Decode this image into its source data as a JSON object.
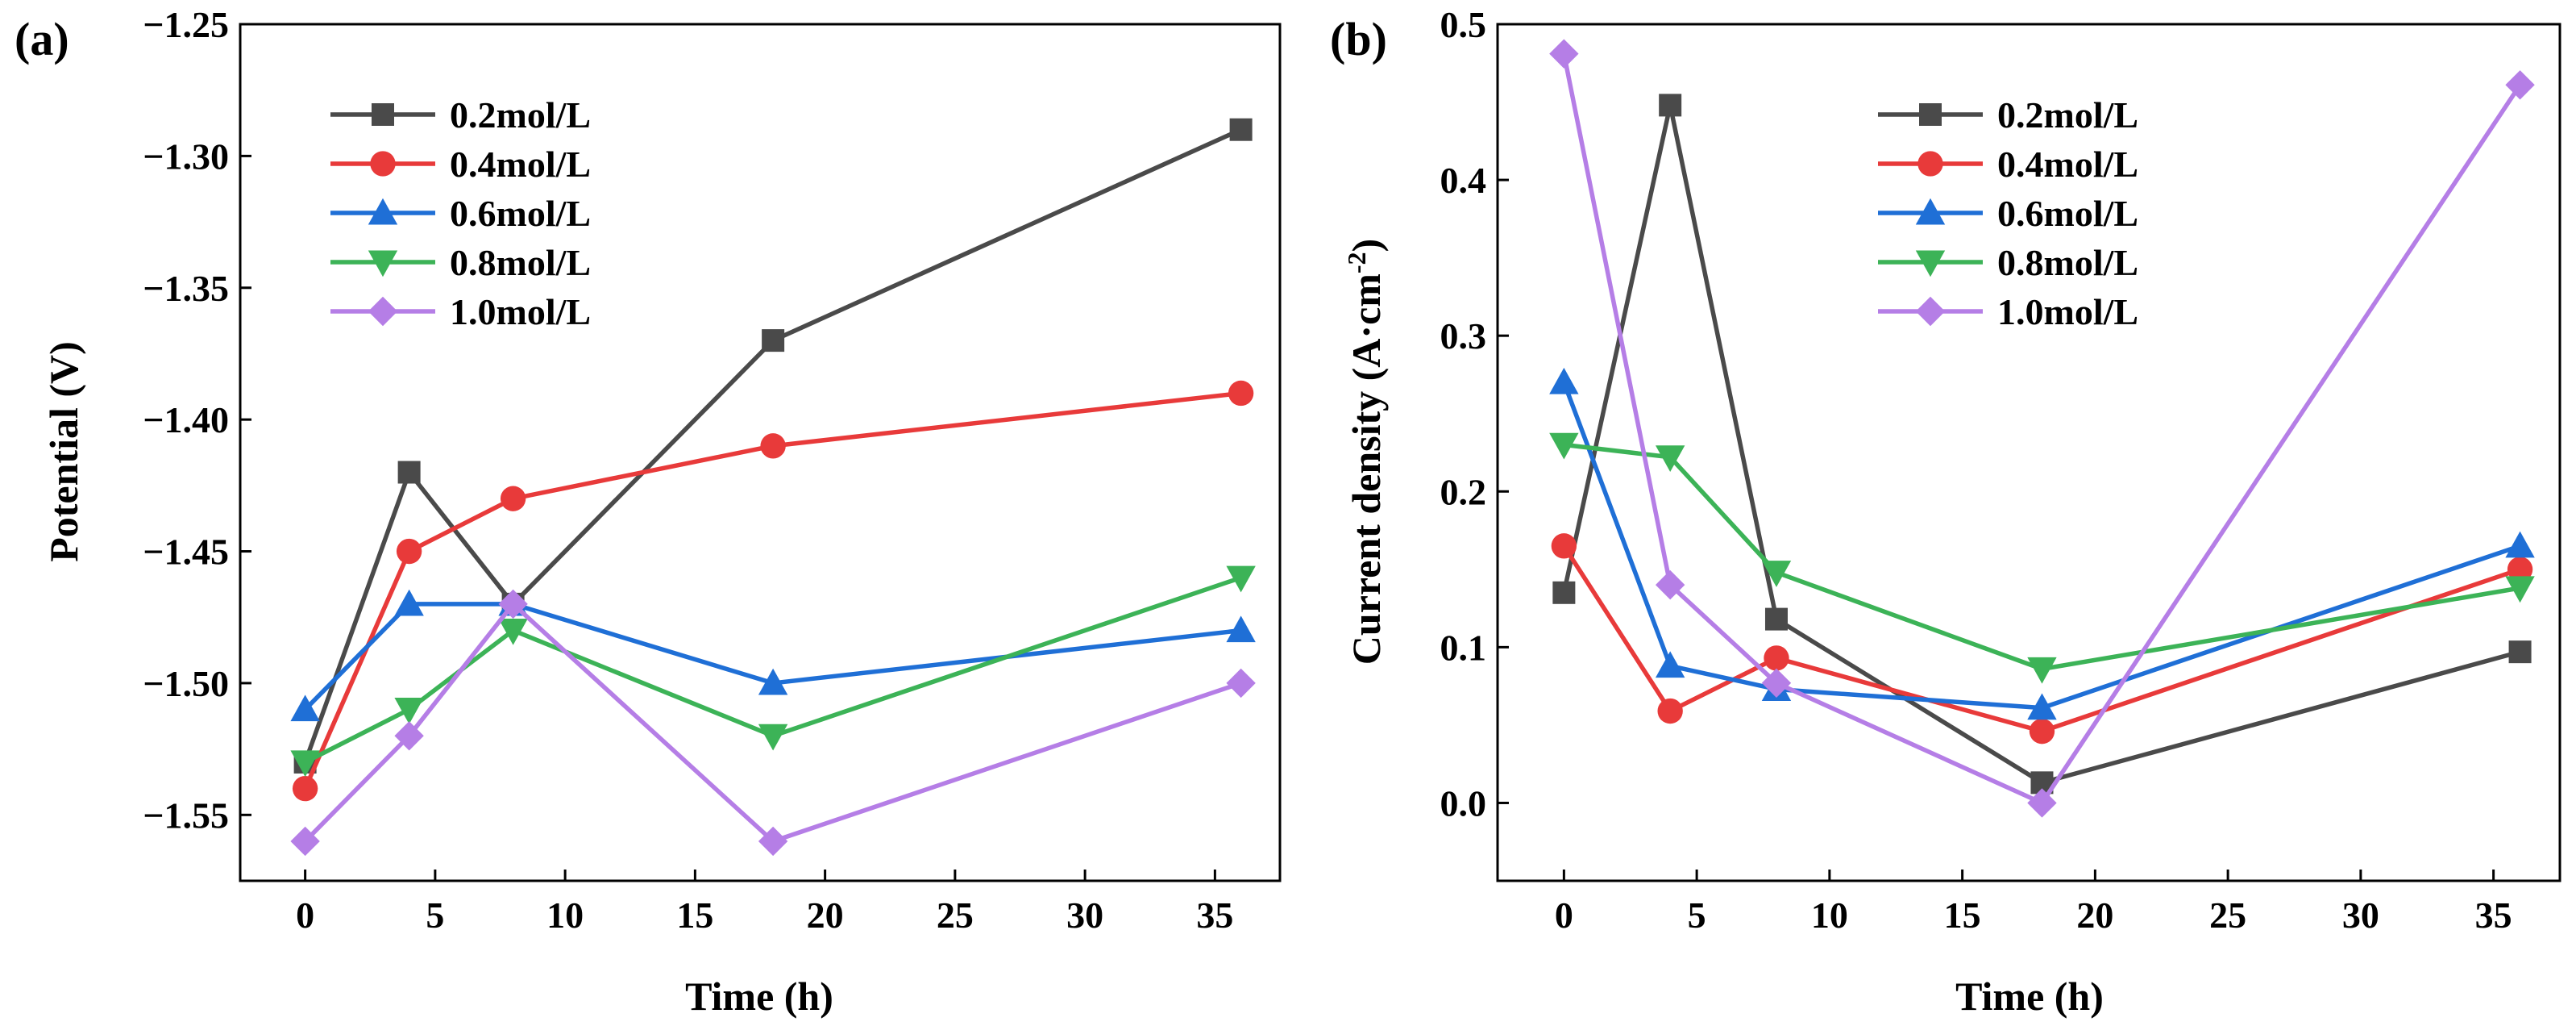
{
  "chart_data": [
    {
      "type": "line",
      "panel_label": "(a)",
      "xlabel": "Time (h)",
      "ylabel": "Potential (V)",
      "xlim": [
        -2.5,
        37.5
      ],
      "ylim": [
        -1.575,
        -1.25
      ],
      "xticks": [
        0,
        5,
        10,
        15,
        20,
        25,
        30,
        35
      ],
      "xtick_labels": [
        "0",
        "5",
        "10",
        "15",
        "20",
        "25",
        "30",
        "35"
      ],
      "yticks": [
        -1.55,
        -1.5,
        -1.45,
        -1.4,
        -1.35,
        -1.3,
        -1.25
      ],
      "ytick_labels": [
        "−1.55",
        "−1.50",
        "−1.45",
        "−1.40",
        "−1.35",
        "−1.30",
        "−1.25"
      ],
      "legend_position": "top-left",
      "x": [
        0,
        4,
        8,
        18,
        36
      ],
      "series": [
        {
          "name": "0.2mol/L",
          "color": "#4a4a4a",
          "marker": "square",
          "values": [
            -1.53,
            -1.42,
            -1.47,
            -1.37,
            -1.29
          ]
        },
        {
          "name": "0.4mol/L",
          "color": "#e83a3a",
          "marker": "circle",
          "values": [
            -1.54,
            -1.45,
            -1.43,
            -1.41,
            -1.39
          ]
        },
        {
          "name": "0.6mol/L",
          "color": "#1f6fd6",
          "marker": "triangle-up",
          "values": [
            -1.51,
            -1.47,
            -1.47,
            -1.5,
            -1.48
          ]
        },
        {
          "name": "0.8mol/L",
          "color": "#3cb357",
          "marker": "triangle-down",
          "values": [
            -1.53,
            -1.51,
            -1.48,
            -1.52,
            -1.46
          ]
        },
        {
          "name": "1.0mol/L",
          "color": "#b57ee6",
          "marker": "diamond",
          "values": [
            -1.56,
            -1.52,
            -1.47,
            -1.56,
            -1.5
          ]
        }
      ]
    },
    {
      "type": "line",
      "panel_label": "(b)",
      "xlabel": "Time (h)",
      "ylabel_main": "Current density (A·cm",
      "ylabel_sup": "-2",
      "ylabel_end": ")",
      "xlim": [
        -2.5,
        37.5
      ],
      "ylim": [
        -0.05,
        0.5
      ],
      "xticks": [
        0,
        5,
        10,
        15,
        20,
        25,
        30,
        35
      ],
      "xtick_labels": [
        "0",
        "5",
        "10",
        "15",
        "20",
        "25",
        "30",
        "35"
      ],
      "yticks": [
        0.0,
        0.1,
        0.2,
        0.3,
        0.4,
        0.5
      ],
      "ytick_labels": [
        "0.0",
        "0.1",
        "0.2",
        "0.3",
        "0.4",
        "0.5"
      ],
      "legend_position": "top-center",
      "x": [
        0,
        4,
        8,
        18,
        36
      ],
      "series": [
        {
          "name": "0.2mol/L",
          "color": "#4a4a4a",
          "marker": "square",
          "values": [
            0.135,
            0.448,
            0.118,
            0.013,
            0.097
          ]
        },
        {
          "name": "0.4mol/L",
          "color": "#e83a3a",
          "marker": "circle",
          "values": [
            0.165,
            0.059,
            0.093,
            0.046,
            0.15
          ]
        },
        {
          "name": "0.6mol/L",
          "color": "#1f6fd6",
          "marker": "triangle-up",
          "values": [
            0.27,
            0.088,
            0.073,
            0.061,
            0.165
          ]
        },
        {
          "name": "0.8mol/L",
          "color": "#3cb357",
          "marker": "triangle-down",
          "values": [
            0.23,
            0.222,
            0.148,
            0.086,
            0.138
          ]
        },
        {
          "name": "1.0mol/L",
          "color": "#b57ee6",
          "marker": "diamond",
          "values": [
            0.481,
            0.14,
            0.077,
            0.0,
            0.461
          ]
        }
      ]
    }
  ]
}
